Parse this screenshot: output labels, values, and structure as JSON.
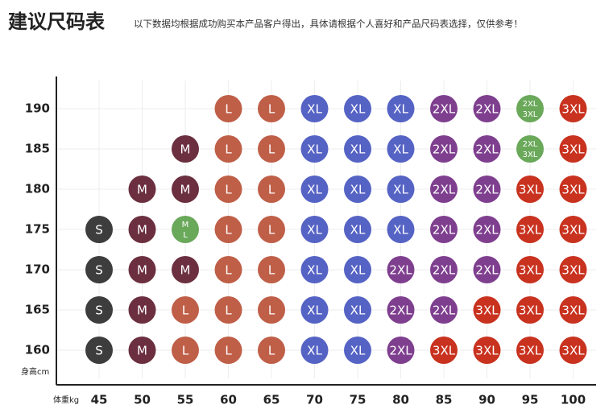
{
  "title": "建议尺码表",
  "subtitle": "以下数据均根据成功购买本产品客户得出，具体请根据个人喜好和产品尺码表选择，仅供参考！",
  "y_label": "身高cm",
  "x_label": "体重kg",
  "x_ticks": [
    45,
    50,
    55,
    60,
    65,
    70,
    75,
    80,
    85,
    90,
    95,
    100
  ],
  "y_ticks": [
    190,
    185,
    180,
    175,
    170,
    165,
    160
  ],
  "rows": [
    [
      null,
      null,
      null,
      {
        "label": "L",
        "color": "#bf5f48"
      },
      {
        "label": "L",
        "color": "#bf5f48"
      },
      {
        "label": "XL",
        "color": "#5563c4"
      },
      {
        "label": "XL",
        "color": "#5563c4"
      },
      {
        "label": "XL",
        "color": "#5563c4"
      },
      {
        "label": "2XL",
        "color": "#7f3f8f"
      },
      {
        "label": "2XL",
        "color": "#7f3f8f"
      },
      {
        "label": [
          "2XL",
          "3XL"
        ],
        "color": "#6aa85a"
      },
      {
        "label": "3XL",
        "color": "#c8321f"
      }
    ],
    [
      null,
      null,
      {
        "label": "M",
        "color": "#6b2f3f"
      },
      {
        "label": "L",
        "color": "#bf5f48"
      },
      {
        "label": "L",
        "color": "#bf5f48"
      },
      {
        "label": "XL",
        "color": "#5563c4"
      },
      {
        "label": "XL",
        "color": "#5563c4"
      },
      {
        "label": "XL",
        "color": "#5563c4"
      },
      {
        "label": "2XL",
        "color": "#7f3f8f"
      },
      {
        "label": "2XL",
        "color": "#7f3f8f"
      },
      {
        "label": [
          "2XL",
          "3XL"
        ],
        "color": "#6aa85a"
      },
      {
        "label": "3XL",
        "color": "#c8321f"
      }
    ],
    [
      null,
      {
        "label": "M",
        "color": "#6b2f3f"
      },
      {
        "label": "M",
        "color": "#6b2f3f"
      },
      {
        "label": "L",
        "color": "#bf5f48"
      },
      {
        "label": "L",
        "color": "#bf5f48"
      },
      {
        "label": "XL",
        "color": "#5563c4"
      },
      {
        "label": "XL",
        "color": "#5563c4"
      },
      {
        "label": "XL",
        "color": "#5563c4"
      },
      {
        "label": "2XL",
        "color": "#7f3f8f"
      },
      {
        "label": "2XL",
        "color": "#7f3f8f"
      },
      {
        "label": "3XL",
        "color": "#c8321f"
      },
      {
        "label": "3XL",
        "color": "#c8321f"
      }
    ],
    [
      {
        "label": "S",
        "color": "#3d3d3d"
      },
      {
        "label": "M",
        "color": "#6b2f3f"
      },
      {
        "label": [
          "M",
          "L"
        ],
        "color": "#6aa85a"
      },
      {
        "label": "L",
        "color": "#bf5f48"
      },
      {
        "label": "L",
        "color": "#bf5f48"
      },
      {
        "label": "XL",
        "color": "#5563c4"
      },
      {
        "label": "XL",
        "color": "#5563c4"
      },
      {
        "label": "XL",
        "color": "#5563c4"
      },
      {
        "label": "2XL",
        "color": "#7f3f8f"
      },
      {
        "label": "2XL",
        "color": "#7f3f8f"
      },
      {
        "label": "3XL",
        "color": "#c8321f"
      },
      {
        "label": "3XL",
        "color": "#c8321f"
      }
    ],
    [
      {
        "label": "S",
        "color": "#3d3d3d"
      },
      {
        "label": "M",
        "color": "#6b2f3f"
      },
      {
        "label": "M",
        "color": "#6b2f3f"
      },
      {
        "label": "L",
        "color": "#bf5f48"
      },
      {
        "label": "L",
        "color": "#bf5f48"
      },
      {
        "label": "XL",
        "color": "#5563c4"
      },
      {
        "label": "XL",
        "color": "#5563c4"
      },
      {
        "label": "2XL",
        "color": "#7f3f8f"
      },
      {
        "label": "2XL",
        "color": "#7f3f8f"
      },
      {
        "label": "2XL",
        "color": "#7f3f8f"
      },
      {
        "label": "3XL",
        "color": "#c8321f"
      },
      {
        "label": "3XL",
        "color": "#c8321f"
      }
    ],
    [
      {
        "label": "S",
        "color": "#3d3d3d"
      },
      {
        "label": "M",
        "color": "#6b2f3f"
      },
      {
        "label": "L",
        "color": "#bf5f48"
      },
      {
        "label": "L",
        "color": "#bf5f48"
      },
      {
        "label": "L",
        "color": "#bf5f48"
      },
      {
        "label": "XL",
        "color": "#5563c4"
      },
      {
        "label": "XL",
        "color": "#5563c4"
      },
      {
        "label": "2XL",
        "color": "#7f3f8f"
      },
      {
        "label": "2XL",
        "color": "#7f3f8f"
      },
      {
        "label": "3XL",
        "color": "#c8321f"
      },
      {
        "label": "3XL",
        "color": "#c8321f"
      },
      {
        "label": "3XL",
        "color": "#c8321f"
      }
    ],
    [
      {
        "label": "S",
        "color": "#3d3d3d"
      },
      {
        "label": "M",
        "color": "#6b2f3f"
      },
      {
        "label": "L",
        "color": "#bf5f48"
      },
      {
        "label": "L",
        "color": "#bf5f48"
      },
      {
        "label": "L",
        "color": "#bf5f48"
      },
      {
        "label": "XL",
        "color": "#5563c4"
      },
      {
        "label": "XL",
        "color": "#5563c4"
      },
      {
        "label": "2XL",
        "color": "#7f3f8f"
      },
      {
        "label": "3XL",
        "color": "#c8321f"
      },
      {
        "label": "3XL",
        "color": "#c8321f"
      },
      {
        "label": "3XL",
        "color": "#c8321f"
      },
      {
        "label": "3XL",
        "color": "#c8321f"
      }
    ]
  ]
}
